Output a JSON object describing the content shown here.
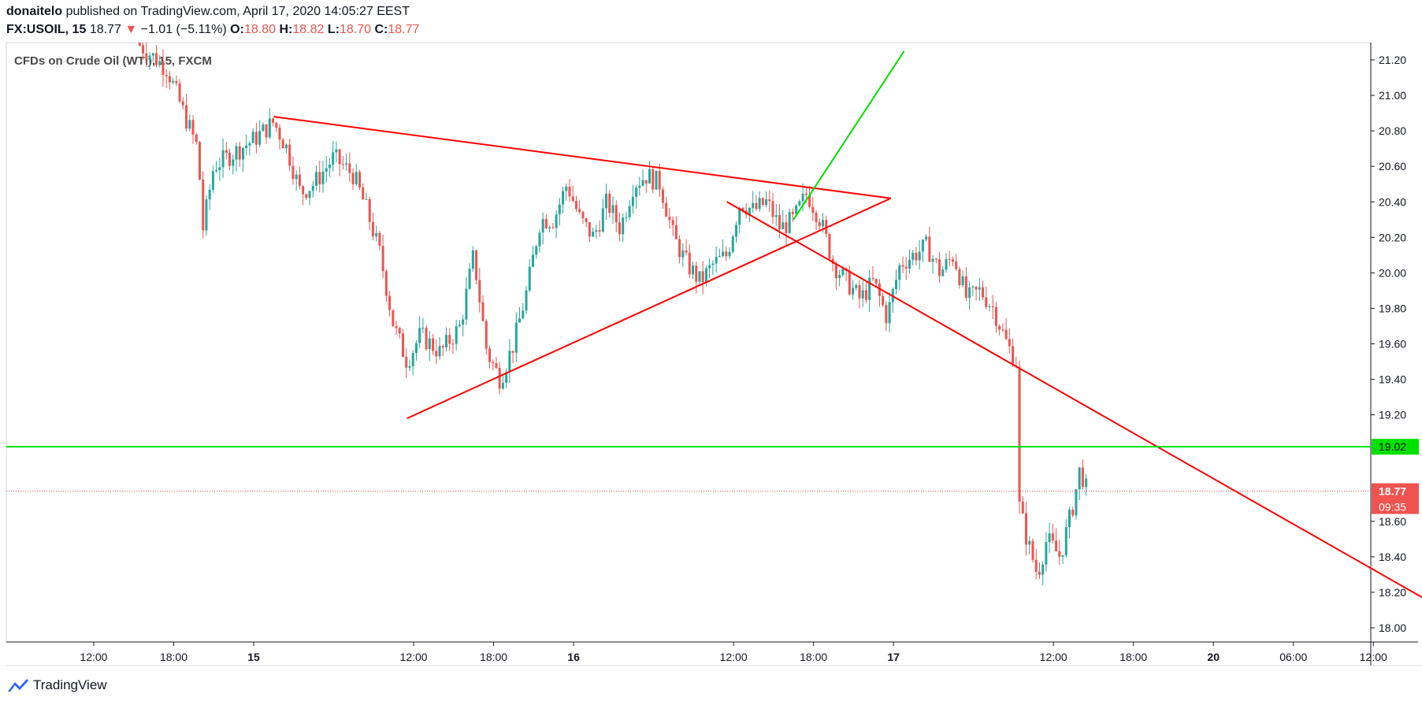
{
  "header": {
    "author": "donaitelo",
    "published_text": "published on TradingView.com, April 17, 2020 14:05:27 EEST",
    "symbol": "FX:USOIL, 15",
    "last_price": "18.77",
    "change_arrow": "▼",
    "change": "−1.01 (−5.11%)",
    "open_label": "O:",
    "open": "18.80",
    "high_label": "H:",
    "high": "18.82",
    "low_label": "L:",
    "low": "18.70",
    "close_label": "C:",
    "close": "18.77"
  },
  "footer": {
    "brand": "TradingView"
  },
  "colors": {
    "up": "#26a69a",
    "down": "#ef5350",
    "trend_red": "#ff0000",
    "trend_green": "#00e000",
    "grid": "#f0f3fa",
    "axis": "#131722"
  },
  "chart_data": {
    "type": "candlestick",
    "title": "CFDs on Crude Oil (WTI), 15, FXCM",
    "interval": "15",
    "y_ticks": [
      "21.20",
      "21.00",
      "20.80",
      "20.60",
      "20.40",
      "20.20",
      "20.00",
      "19.80",
      "19.60",
      "19.40",
      "19.20",
      "19.02",
      "18.60",
      "18.40",
      "18.20",
      "18.00"
    ],
    "y_range": [
      17.95,
      21.25
    ],
    "x_ticks": [
      {
        "label": "12:00",
        "t": -12
      },
      {
        "label": "18:00",
        "t": -6
      },
      {
        "label": "15",
        "t": 0
      },
      {
        "label": "12:00",
        "t": 12
      },
      {
        "label": "18:00",
        "t": 18
      },
      {
        "label": "16",
        "t": 24
      },
      {
        "label": "12:00",
        "t": 36
      },
      {
        "label": "18:00",
        "t": 42
      },
      {
        "label": "17",
        "t": 48
      },
      {
        "label": "12:00",
        "t": 60
      },
      {
        "label": "18:00",
        "t": 66
      },
      {
        "label": "20",
        "t": 72
      },
      {
        "label": "06:00",
        "t": 78
      },
      {
        "label": "12:00",
        "t": 84
      }
    ],
    "price_path": [
      [
        -8.8,
        21.3
      ],
      [
        -6.5,
        21.15
      ],
      [
        -5.5,
        20.95
      ],
      [
        -4.2,
        20.7
      ],
      [
        -3.8,
        20.25
      ],
      [
        -3,
        20.6
      ],
      [
        -2,
        20.65
      ],
      [
        0,
        20.75
      ],
      [
        1.5,
        20.85
      ],
      [
        2.5,
        20.7
      ],
      [
        3.5,
        20.45
      ],
      [
        4.5,
        20.5
      ],
      [
        6,
        20.65
      ],
      [
        7.5,
        20.55
      ],
      [
        8.5,
        20.35
      ],
      [
        9.5,
        20.1
      ],
      [
        10.5,
        19.7
      ],
      [
        11.5,
        19.5
      ],
      [
        12.5,
        19.65
      ],
      [
        14,
        19.55
      ],
      [
        15.5,
        19.7
      ],
      [
        16.5,
        20.1
      ],
      [
        17.5,
        19.55
      ],
      [
        18.5,
        19.4
      ],
      [
        19.5,
        19.6
      ],
      [
        20.5,
        19.9
      ],
      [
        21.5,
        20.3
      ],
      [
        22.5,
        20.3
      ],
      [
        23.5,
        20.5
      ],
      [
        24.5,
        20.3
      ],
      [
        25.5,
        20.2
      ],
      [
        26.5,
        20.4
      ],
      [
        27.5,
        20.25
      ],
      [
        28.5,
        20.5
      ],
      [
        29.5,
        20.55
      ],
      [
        30.5,
        20.5
      ],
      [
        31.5,
        20.2
      ],
      [
        32.5,
        20.05
      ],
      [
        33.5,
        19.95
      ],
      [
        34.5,
        20.05
      ],
      [
        35.5,
        20.1
      ],
      [
        36.5,
        20.4
      ],
      [
        37.5,
        20.35
      ],
      [
        38.5,
        20.4
      ],
      [
        39.5,
        20.25
      ],
      [
        40.5,
        20.3
      ],
      [
        41.5,
        20.45
      ],
      [
        42.5,
        20.3
      ],
      [
        43.5,
        20.05
      ],
      [
        44.5,
        19.95
      ],
      [
        45.5,
        19.85
      ],
      [
        46.5,
        19.95
      ],
      [
        47.5,
        19.75
      ],
      [
        48.5,
        20.05
      ],
      [
        49.5,
        20.1
      ],
      [
        50.5,
        20.15
      ],
      [
        51.5,
        20.0
      ],
      [
        52.5,
        20.1
      ],
      [
        53.5,
        19.85
      ],
      [
        54.5,
        19.9
      ],
      [
        55.5,
        19.8
      ],
      [
        56.5,
        19.6
      ],
      [
        57.2,
        19.5
      ],
      [
        57.4,
        18.7
      ],
      [
        58,
        18.5
      ],
      [
        58.8,
        18.3
      ],
      [
        59.5,
        18.5
      ],
      [
        60.5,
        18.4
      ],
      [
        61.5,
        18.7
      ],
      [
        62,
        18.9
      ],
      [
        62.5,
        18.77
      ]
    ],
    "last_price": "18.77",
    "countdown": "09:35",
    "horizontal_line": {
      "price": 19.02,
      "label": "19.02",
      "color": "green"
    },
    "trendlines": [
      {
        "color": "red",
        "from": [
          1.5,
          20.88
        ],
        "to": [
          47.8,
          20.42
        ]
      },
      {
        "color": "red",
        "from": [
          11.5,
          19.18
        ],
        "to": [
          47.8,
          20.42
        ]
      },
      {
        "color": "red",
        "from": [
          35.5,
          20.4
        ],
        "to": [
          90.5,
          18.05
        ]
      },
      {
        "color": "green",
        "from": [
          40.5,
          20.3
        ],
        "to": [
          48.8,
          21.25
        ]
      }
    ]
  }
}
